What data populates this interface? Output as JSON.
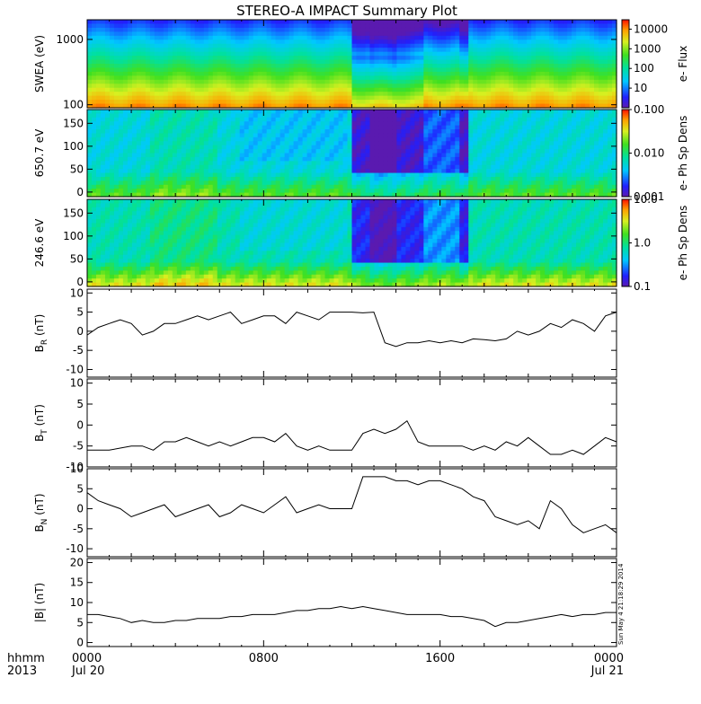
{
  "title": "STEREO-A IMPACT Summary Plot",
  "footer": {
    "hhmm_label": "hhmm",
    "year_label": "2013",
    "x_tick_labels": [
      "0000",
      "0800",
      "1600",
      "0000"
    ],
    "x_date_labels": [
      "Jul 20",
      "",
      "",
      "Jul 21"
    ]
  },
  "timestamp": "Sun May  4 21:18:29 2014",
  "chart_data": [
    {
      "type": "heatmap",
      "ylabel": "SWEA (eV)",
      "colorbar_label": "e- Flux",
      "y_scale": "log",
      "y_ticks": [
        100,
        1000
      ],
      "y_tick_labels": [
        "100",
        "1000"
      ],
      "ylim": [
        90,
        2000
      ],
      "colorbar_ticks": [
        "10",
        "100",
        "1000",
        "10000"
      ],
      "colorbar_range": [
        1,
        30000
      ],
      "colorbar_scale": "log"
    },
    {
      "type": "heatmap",
      "ylabel": "650.7 eV",
      "colorbar_label": "e- Ph Sp Dens",
      "y_ticks": [
        0,
        50,
        100,
        150
      ],
      "y_tick_labels": [
        "0",
        "50",
        "100",
        "150"
      ],
      "ylim": [
        -10,
        180
      ],
      "colorbar_ticks": [
        "0.001",
        "0.010",
        "0.100"
      ],
      "colorbar_range": [
        0.001,
        0.1
      ],
      "colorbar_scale": "log"
    },
    {
      "type": "heatmap",
      "ylabel": "246.6 eV",
      "colorbar_label": "e- Ph Sp Dens",
      "y_ticks": [
        0,
        50,
        100,
        150
      ],
      "y_tick_labels": [
        "0",
        "50",
        "100",
        "150"
      ],
      "ylim": [
        -10,
        180
      ],
      "colorbar_ticks": [
        "0.1",
        "1.0",
        "10.0"
      ],
      "colorbar_range": [
        0.1,
        10
      ],
      "colorbar_scale": "log"
    },
    {
      "type": "line",
      "ylabel_main": "B",
      "ylabel_sub": "R",
      "ylabel_unit": "(nT)",
      "ylim": [
        -12,
        11
      ],
      "y_ticks": [
        -10,
        -5,
        0,
        5,
        10
      ],
      "y_tick_labels": [
        "-10",
        "-5",
        "0",
        "5",
        "10"
      ],
      "x_hours": [
        0,
        0.5,
        1,
        1.5,
        2,
        2.5,
        3,
        3.5,
        4,
        4.5,
        5,
        5.5,
        6,
        6.5,
        7,
        7.5,
        8,
        8.5,
        9,
        9.5,
        10,
        10.5,
        11,
        11.5,
        12,
        12.5,
        13,
        13.5,
        14,
        14.5,
        15,
        15.5,
        16,
        16.5,
        17,
        17.5,
        18,
        18.5,
        19,
        19.5,
        20,
        20.5,
        21,
        21.5,
        22,
        22.5,
        23,
        23.5,
        24
      ],
      "values": [
        -1,
        1,
        2,
        3,
        2,
        -1,
        0,
        2,
        2,
        3,
        4,
        3,
        4,
        5,
        2,
        3,
        4,
        4,
        2,
        5,
        4,
        3,
        5,
        5,
        5,
        4.8,
        5,
        -3,
        -4,
        -3,
        -3,
        -2.5,
        -3,
        -2.5,
        -3,
        -2,
        -2.2,
        -2.5,
        -2,
        0,
        -1,
        0,
        2,
        1,
        3,
        2,
        0,
        4,
        5
      ]
    },
    {
      "type": "line",
      "ylabel_main": "B",
      "ylabel_sub": "T",
      "ylabel_unit": "(nT)",
      "ylim": [
        -10,
        11
      ],
      "y_ticks": [
        -10,
        -5,
        0,
        5,
        10
      ],
      "y_tick_labels": [
        "-10",
        "-5",
        "0",
        "5",
        "10"
      ],
      "x_hours": [
        0,
        0.5,
        1,
        1.5,
        2,
        2.5,
        3,
        3.5,
        4,
        4.5,
        5,
        5.5,
        6,
        6.5,
        7,
        7.5,
        8,
        8.5,
        9,
        9.5,
        10,
        10.5,
        11,
        11.5,
        12,
        12.5,
        13,
        13.5,
        14,
        14.5,
        15,
        15.5,
        16,
        16.5,
        17,
        17.5,
        18,
        18.5,
        19,
        19.5,
        20,
        20.5,
        21,
        21.5,
        22,
        22.5,
        23,
        23.5,
        24
      ],
      "values": [
        -6,
        -6,
        -6,
        -5.5,
        -5,
        -5,
        -6,
        -4,
        -4,
        -3,
        -4,
        -5,
        -4,
        -5,
        -4,
        -3,
        -3,
        -4,
        -2,
        -5,
        -6,
        -5,
        -6,
        -6,
        -6,
        -2,
        -1,
        -2,
        -1,
        1,
        -4,
        -5,
        -5,
        -5,
        -5,
        -6,
        -5,
        -6,
        -4,
        -5,
        -3,
        -5,
        -7,
        -7,
        -6,
        -7,
        -5,
        -3,
        -4
      ]
    },
    {
      "type": "line",
      "ylabel_main": "B",
      "ylabel_sub": "N",
      "ylabel_unit": "(nT)",
      "ylim": [
        -12,
        10
      ],
      "y_ticks": [
        -10,
        -5,
        0,
        5,
        10
      ],
      "y_tick_labels": [
        "-10",
        "-5",
        "0",
        "5",
        "10"
      ],
      "x_hours": [
        0,
        0.5,
        1,
        1.5,
        2,
        2.5,
        3,
        3.5,
        4,
        4.5,
        5,
        5.5,
        6,
        6.5,
        7,
        7.5,
        8,
        8.5,
        9,
        9.5,
        10,
        10.5,
        11,
        11.5,
        12,
        12.5,
        13,
        13.5,
        14,
        14.5,
        15,
        15.5,
        16,
        16.5,
        17,
        17.5,
        18,
        18.5,
        19,
        19.5,
        20,
        20.5,
        21,
        21.5,
        22,
        22.5,
        23,
        23.5,
        24
      ],
      "values": [
        4,
        2,
        1,
        0,
        -2,
        -1,
        0,
        1,
        -2,
        -1,
        0,
        1,
        -2,
        -1,
        1,
        0,
        -1,
        1,
        3,
        -1,
        0,
        1,
        0,
        0,
        0,
        8,
        8,
        8,
        7,
        7,
        6,
        7,
        7,
        6,
        5,
        3,
        2,
        -2,
        -3,
        -4,
        -3,
        -5,
        2,
        0,
        -4,
        -6,
        -5,
        -4,
        -6
      ]
    },
    {
      "type": "line",
      "ylabel_main": "|B|",
      "ylabel_sub": "",
      "ylabel_unit": "(nT)",
      "ylim": [
        -1,
        21
      ],
      "y_ticks": [
        0,
        5,
        10,
        15,
        20
      ],
      "y_tick_labels": [
        "0",
        "5",
        "10",
        "15",
        "20"
      ],
      "x_hours": [
        0,
        0.5,
        1,
        1.5,
        2,
        2.5,
        3,
        3.5,
        4,
        4.5,
        5,
        5.5,
        6,
        6.5,
        7,
        7.5,
        8,
        8.5,
        9,
        9.5,
        10,
        10.5,
        11,
        11.5,
        12,
        12.5,
        13,
        13.5,
        14,
        14.5,
        15,
        15.5,
        16,
        16.5,
        17,
        17.5,
        18,
        18.5,
        19,
        19.5,
        20,
        20.5,
        21,
        21.5,
        22,
        22.5,
        23,
        23.5,
        24
      ],
      "values": [
        7,
        7,
        6.5,
        6,
        5,
        5.5,
        5,
        5,
        5.5,
        5.5,
        6,
        6,
        6,
        6.5,
        6.5,
        7,
        7,
        7,
        7.5,
        8,
        8,
        8.5,
        8.5,
        9,
        8.5,
        9,
        8.5,
        8,
        7.5,
        7,
        7,
        7,
        7,
        6.5,
        6.5,
        6,
        5.5,
        4,
        5,
        5,
        5.5,
        6,
        6.5,
        7,
        6.5,
        7,
        7,
        7.5,
        7.5
      ]
    }
  ]
}
